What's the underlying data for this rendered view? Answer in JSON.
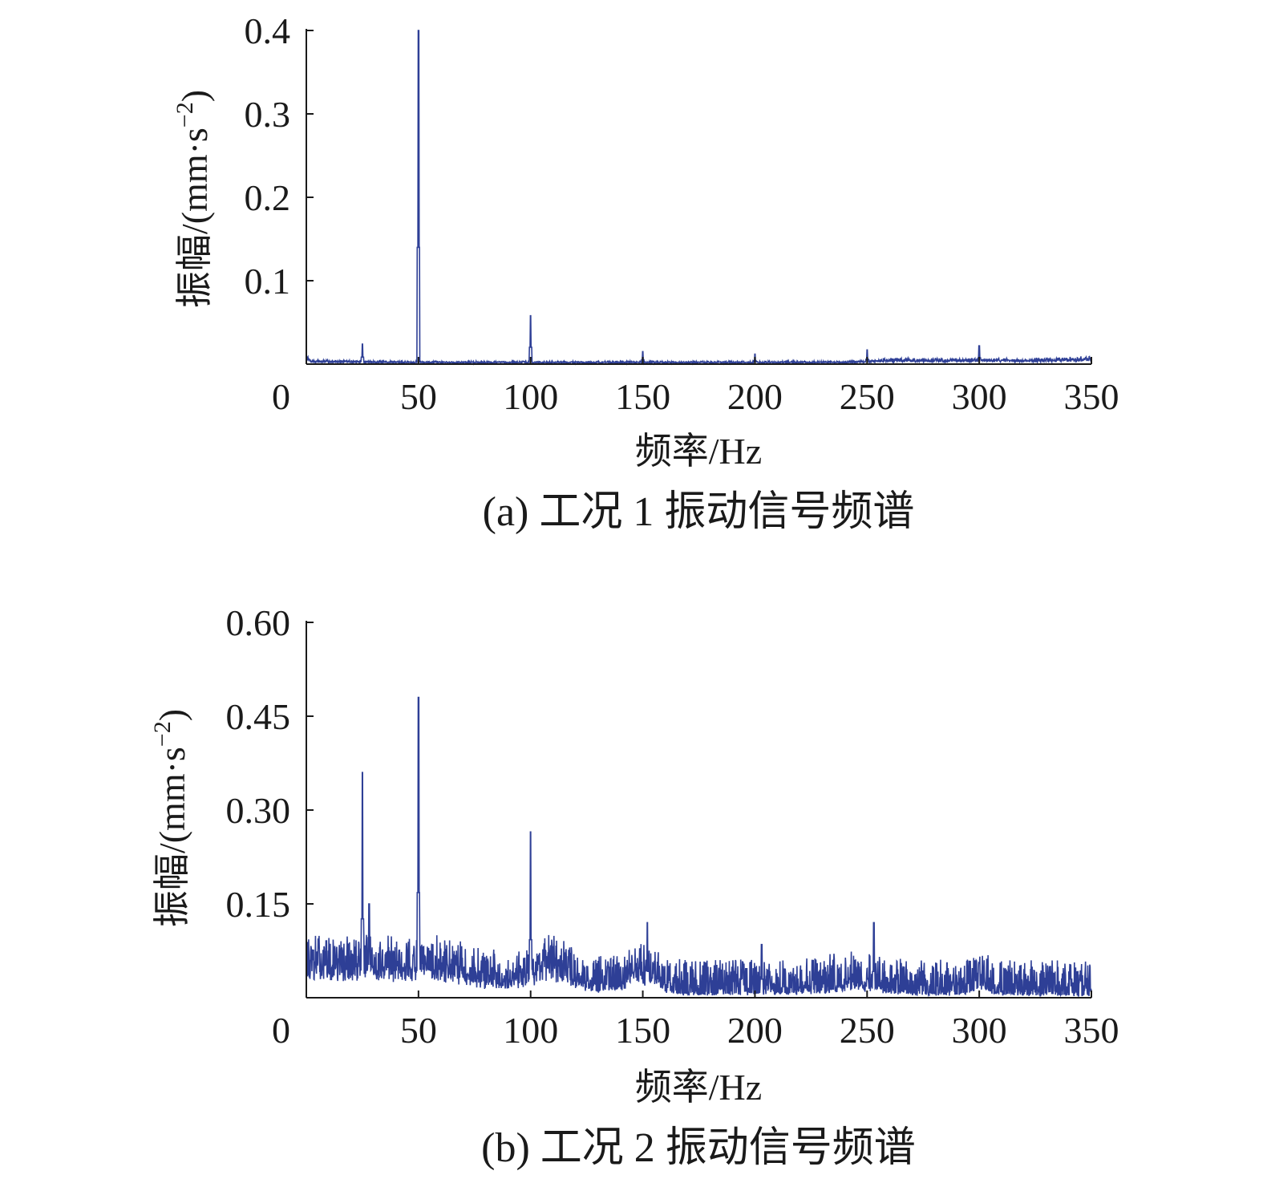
{
  "colors": {
    "series": "#2e3f96",
    "axis": "#1a1a1a"
  },
  "chart_data": [
    {
      "type": "line",
      "caption": "(a) 工况 1 振动信号频谱",
      "xlabel": "频率/Hz",
      "ylabel_main": "振幅/(mm·s",
      "ylabel_exp": "−2",
      "ylabel_close": ")",
      "xlim": [
        0,
        350
      ],
      "ylim": [
        0,
        0.4
      ],
      "xticks": [
        0,
        50,
        100,
        150,
        200,
        250,
        300,
        350
      ],
      "xtick_labels": [
        "0",
        "50",
        "100",
        "150",
        "200",
        "250",
        "300",
        "350"
      ],
      "yticks": [
        0.1,
        0.2,
        0.3,
        0.4
      ],
      "ytick_labels": [
        "0.1",
        "0.2",
        "0.3",
        "0.4"
      ],
      "baseline": [
        [
          0,
          0.008
        ],
        [
          2,
          0.003
        ],
        [
          50,
          0.002
        ],
        [
          240,
          0.002
        ],
        [
          260,
          0.004
        ],
        [
          330,
          0.004
        ],
        [
          350,
          0.006
        ]
      ],
      "noise": 0.002,
      "bumps": [],
      "peaks": [
        [
          25,
          0.024
        ],
        [
          50,
          0.4
        ],
        [
          100,
          0.058
        ],
        [
          150,
          0.015
        ],
        [
          200,
          0.012
        ],
        [
          250,
          0.017
        ],
        [
          300,
          0.022
        ]
      ],
      "seed": 7
    },
    {
      "type": "line",
      "caption": "(b) 工况 2 振动信号频谱",
      "xlabel": "频率/Hz",
      "ylabel_main": "振幅/(mm·s",
      "ylabel_exp": "−2",
      "ylabel_close": ")",
      "xlim": [
        0,
        350
      ],
      "ylim": [
        0,
        0.6
      ],
      "xticks": [
        0,
        50,
        100,
        150,
        200,
        250,
        300,
        350
      ],
      "xtick_labels": [
        "0",
        "50",
        "100",
        "150",
        "200",
        "250",
        "300",
        "350"
      ],
      "yticks": [
        0.15,
        0.3,
        0.45,
        0.6
      ],
      "ytick_labels": [
        "0.15",
        "0.30",
        "0.45",
        "0.60"
      ],
      "baseline": [
        [
          0,
          0.045
        ],
        [
          40,
          0.045
        ],
        [
          60,
          0.04
        ],
        [
          80,
          0.025
        ],
        [
          100,
          0.02
        ],
        [
          130,
          0.012
        ],
        [
          170,
          0.006
        ],
        [
          240,
          0.008
        ],
        [
          260,
          0.006
        ],
        [
          350,
          0.004
        ]
      ],
      "noise": 0.035,
      "bumps": [
        [
          110,
          0.025,
          8
        ],
        [
          150,
          0.025,
          6
        ],
        [
          245,
          0.01,
          10
        ],
        [
          300,
          0.01,
          4
        ]
      ],
      "peaks": [
        [
          25,
          0.36
        ],
        [
          28,
          0.15
        ],
        [
          50,
          0.48
        ],
        [
          100,
          0.265
        ],
        [
          152,
          0.12
        ],
        [
          203,
          0.085
        ],
        [
          253,
          0.12
        ],
        [
          300,
          0.055
        ]
      ],
      "seed": 13
    }
  ]
}
